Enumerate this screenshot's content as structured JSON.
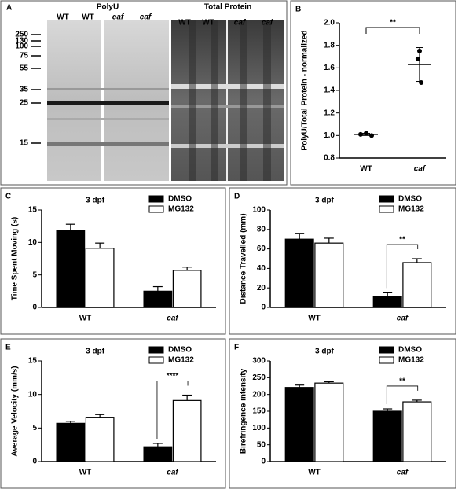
{
  "blot": {
    "panel": "A",
    "left_title": "PolyU",
    "right_title": "Total Protein",
    "left_lanes": [
      "WT",
      "WT",
      "caf",
      "caf"
    ],
    "right_lanes": [
      "WT",
      "WT",
      "caf",
      "caf"
    ],
    "markers": [
      "250",
      "130",
      "100",
      "75",
      "55",
      "35",
      "25",
      "15"
    ]
  },
  "chart_data": [
    {
      "type": "dot",
      "panel": "B",
      "y_label": "PolyU/Total Protein - normalized",
      "categories": [
        "WT",
        "caf"
      ],
      "points": [
        [
          1.01,
          1.02,
          1.0
        ],
        [
          1.68,
          1.75,
          1.47
        ]
      ],
      "means": [
        1.01,
        1.63
      ],
      "errors": [
        0.01,
        0.15
      ],
      "color": "#000000",
      "annotation": "**",
      "ylim": [
        0.8,
        2.0
      ],
      "yticks": [
        0.8,
        {
          "value": 1,
          "label": "1.0"
        },
        1.2,
        1.4,
        1.6,
        1.8,
        {
          "value": 2,
          "label": "2.0"
        }
      ]
    },
    {
      "type": "bar",
      "panel": "C",
      "title": "3 dpf",
      "y_label": "Time Spent Moving (s)",
      "categories": [
        "WT",
        "caf"
      ],
      "legend": "upper right",
      "series": [
        {
          "name": "DMSO",
          "color": "#000000",
          "values": [
            11.9,
            2.5
          ],
          "errors": [
            0.9,
            0.7
          ]
        },
        {
          "name": "MG132",
          "color": "#ffffff",
          "values": [
            9.1,
            5.7
          ],
          "errors": [
            0.8,
            0.5
          ]
        }
      ],
      "ylim": [
        0,
        15
      ],
      "yticks": [
        0,
        5,
        10,
        15
      ]
    },
    {
      "type": "bar",
      "panel": "D",
      "title": "3 dpf",
      "y_label": "Distance Travelled (mm)",
      "categories": [
        "WT",
        "caf"
      ],
      "legend": "upper right",
      "annotation": "**",
      "series": [
        {
          "name": "DMSO",
          "color": "#000000",
          "values": [
            70,
            11
          ],
          "errors": [
            6,
            4
          ]
        },
        {
          "name": "MG132",
          "color": "#ffffff",
          "values": [
            66,
            46
          ],
          "errors": [
            5,
            4
          ]
        }
      ],
      "ylim": [
        0,
        100
      ],
      "yticks": [
        0,
        20,
        40,
        60,
        80,
        100
      ]
    },
    {
      "type": "bar",
      "panel": "E",
      "title": "3 dpf",
      "y_label": "Average Velocity (mm/s)",
      "categories": [
        "WT",
        "caf"
      ],
      "legend": "upper right",
      "annotation": "****",
      "series": [
        {
          "name": "DMSO",
          "color": "#000000",
          "values": [
            5.7,
            2.2
          ],
          "errors": [
            0.3,
            0.5
          ]
        },
        {
          "name": "MG132",
          "color": "#ffffff",
          "values": [
            6.6,
            9.1
          ],
          "errors": [
            0.4,
            0.8
          ]
        }
      ],
      "ylim": [
        0,
        15
      ],
      "yticks": [
        0,
        5,
        10,
        15
      ]
    },
    {
      "type": "bar",
      "panel": "F",
      "title": "3 dpf",
      "y_label": "Birefringence intensity",
      "categories": [
        "WT",
        "caf"
      ],
      "legend": "upper right",
      "annotation": "**",
      "series": [
        {
          "name": "DMSO",
          "color": "#000000",
          "values": [
            221,
            150
          ],
          "errors": [
            7,
            7
          ]
        },
        {
          "name": "MG132",
          "color": "#ffffff",
          "values": [
            234,
            178
          ],
          "errors": [
            4,
            5
          ]
        }
      ],
      "ylim": [
        0,
        300
      ],
      "yticks": [
        0,
        50,
        100,
        150,
        200,
        250,
        300
      ]
    }
  ]
}
